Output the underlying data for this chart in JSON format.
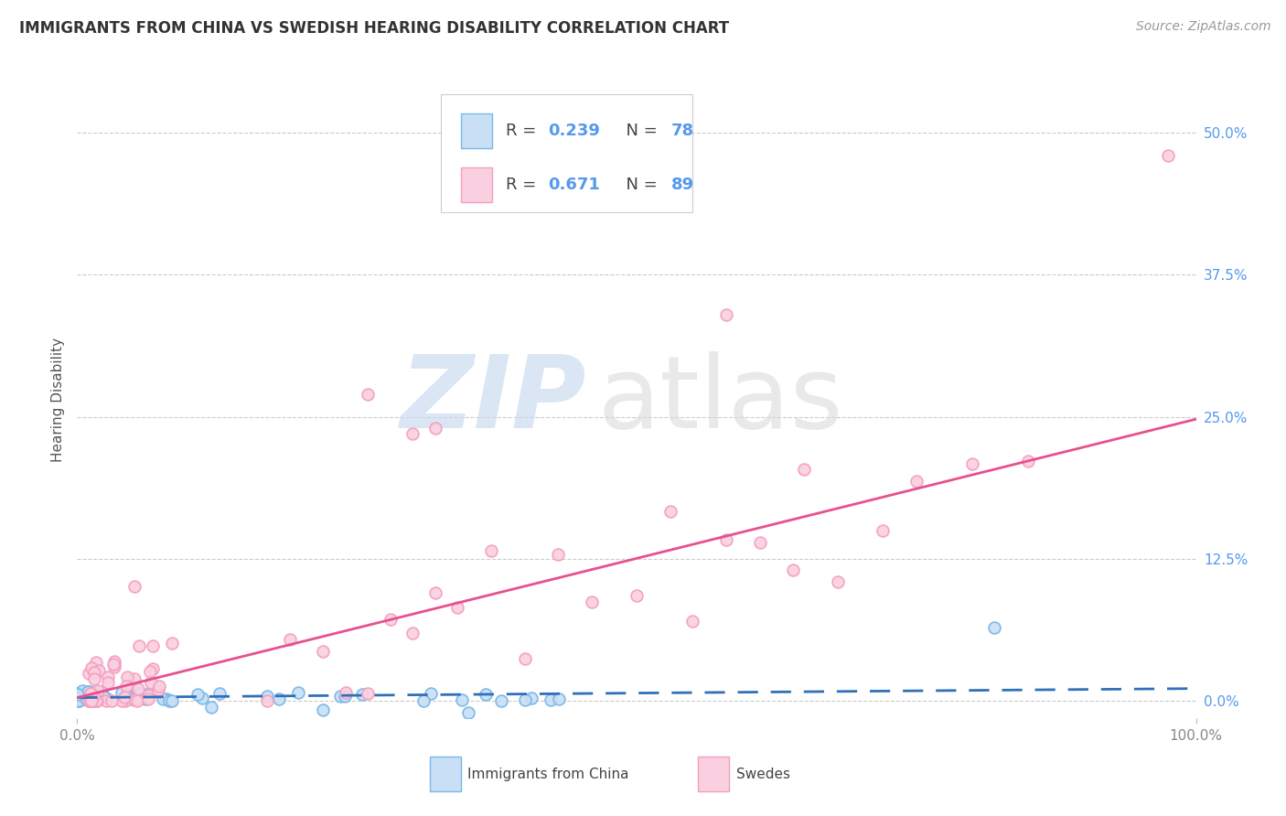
{
  "title": "IMMIGRANTS FROM CHINA VS SWEDISH HEARING DISABILITY CORRELATION CHART",
  "source": "Source: ZipAtlas.com",
  "ylabel": "Hearing Disability",
  "china_color": "#7ab8e8",
  "china_fill": "#c8dff5",
  "swedes_color": "#f4a0c0",
  "swedes_fill": "#fad0e0",
  "china_line_color": "#3070b8",
  "swedes_line_color": "#e85090",
  "background_color": "#ffffff",
  "grid_color": "#cccccc",
  "title_color": "#333333",
  "source_color": "#999999",
  "ytick_color": "#5599ee",
  "xtick_color": "#888888",
  "ytick_values": [
    0.0,
    0.125,
    0.25,
    0.375,
    0.5
  ],
  "ytick_labels": [
    "0.0%",
    "12.5%",
    "25.0%",
    "37.5%",
    "50.0%"
  ],
  "xlim": [
    0.0,
    1.0
  ],
  "ylim": [
    -0.015,
    0.545
  ],
  "china_R": 0.239,
  "china_N": 78,
  "swedes_R": 0.671,
  "swedes_N": 89,
  "china_line_slope": 0.008,
  "china_line_intercept": 0.003,
  "swedes_line_slope": 0.245,
  "swedes_line_intercept": 0.003,
  "label_china": "Immigrants from China",
  "label_swedes": "Swedes",
  "marker_size": 85,
  "watermark_zip_color": "#c8daf0",
  "watermark_atlas_color": "#d8d8d8"
}
